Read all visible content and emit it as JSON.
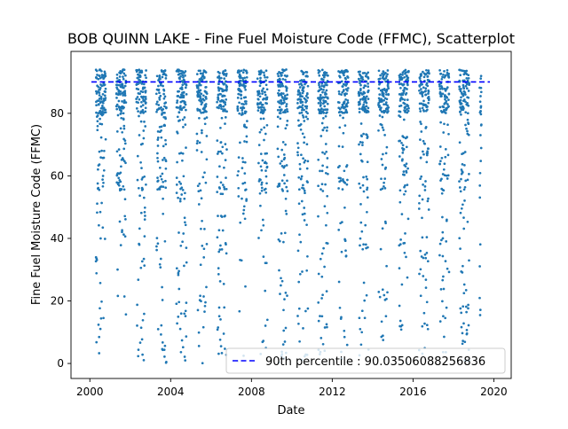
{
  "chart_data": {
    "type": "scatter",
    "title": "BOB QUINN LAKE - Fine Fuel Moisture Code (FFMC), Scatterplot",
    "xlabel": "Date",
    "ylabel": "Fine Fuel Moisture Code (FFMC)",
    "xlim": [
      "1999-01-25",
      "2020-11-10"
    ],
    "ylim": [
      -4.8,
      99.8
    ],
    "x_ticks": [
      "2000",
      "2004",
      "2008",
      "2012",
      "2016",
      "2020"
    ],
    "y_ticks": [
      "0",
      "20",
      "40",
      "60",
      "80"
    ],
    "grid": false,
    "legend_position": "lower-right",
    "reference_line": {
      "label": "90th percentile : 90.03506088256836",
      "value": 90.03506088256836,
      "style": "dashed",
      "color": "#0000ff"
    },
    "series": [
      {
        "color": "#1f77b4",
        "marker": "circle",
        "seasons": [
          {
            "year": 2000,
            "start": "2000-04-20",
            "end": "2000-10-15"
          },
          {
            "year": 2001,
            "start": "2001-04-25",
            "end": "2001-10-15"
          },
          {
            "year": 2002,
            "start": "2002-04-20",
            "end": "2002-10-15"
          },
          {
            "year": 2003,
            "start": "2003-04-20",
            "end": "2003-10-15"
          },
          {
            "year": 2004,
            "start": "2004-04-15",
            "end": "2004-10-15"
          },
          {
            "year": 2005,
            "start": "2005-04-20",
            "end": "2005-10-20"
          },
          {
            "year": 2006,
            "start": "2006-04-20",
            "end": "2006-10-15"
          },
          {
            "year": 2007,
            "start": "2007-04-25",
            "end": "2007-10-15"
          },
          {
            "year": 2008,
            "start": "2008-04-20",
            "end": "2008-10-15"
          },
          {
            "year": 2009,
            "start": "2009-04-20",
            "end": "2009-10-15"
          },
          {
            "year": 2010,
            "start": "2010-04-15",
            "end": "2010-10-20"
          },
          {
            "year": 2011,
            "start": "2011-04-20",
            "end": "2011-10-15"
          },
          {
            "year": 2012,
            "start": "2012-04-20",
            "end": "2012-10-15"
          },
          {
            "year": 2013,
            "start": "2013-04-20",
            "end": "2013-10-20"
          },
          {
            "year": 2014,
            "start": "2014-04-15",
            "end": "2014-10-15"
          },
          {
            "year": 2015,
            "start": "2015-04-20",
            "end": "2015-10-15"
          },
          {
            "year": 2016,
            "start": "2016-04-20",
            "end": "2016-10-20"
          },
          {
            "year": 2017,
            "start": "2017-04-20",
            "end": "2017-10-15"
          },
          {
            "year": 2018,
            "start": "2018-04-15",
            "end": "2018-10-15"
          },
          {
            "year": 2019,
            "start": "2019-04-20",
            "end": "2019-05-20"
          }
        ]
      }
    ]
  }
}
